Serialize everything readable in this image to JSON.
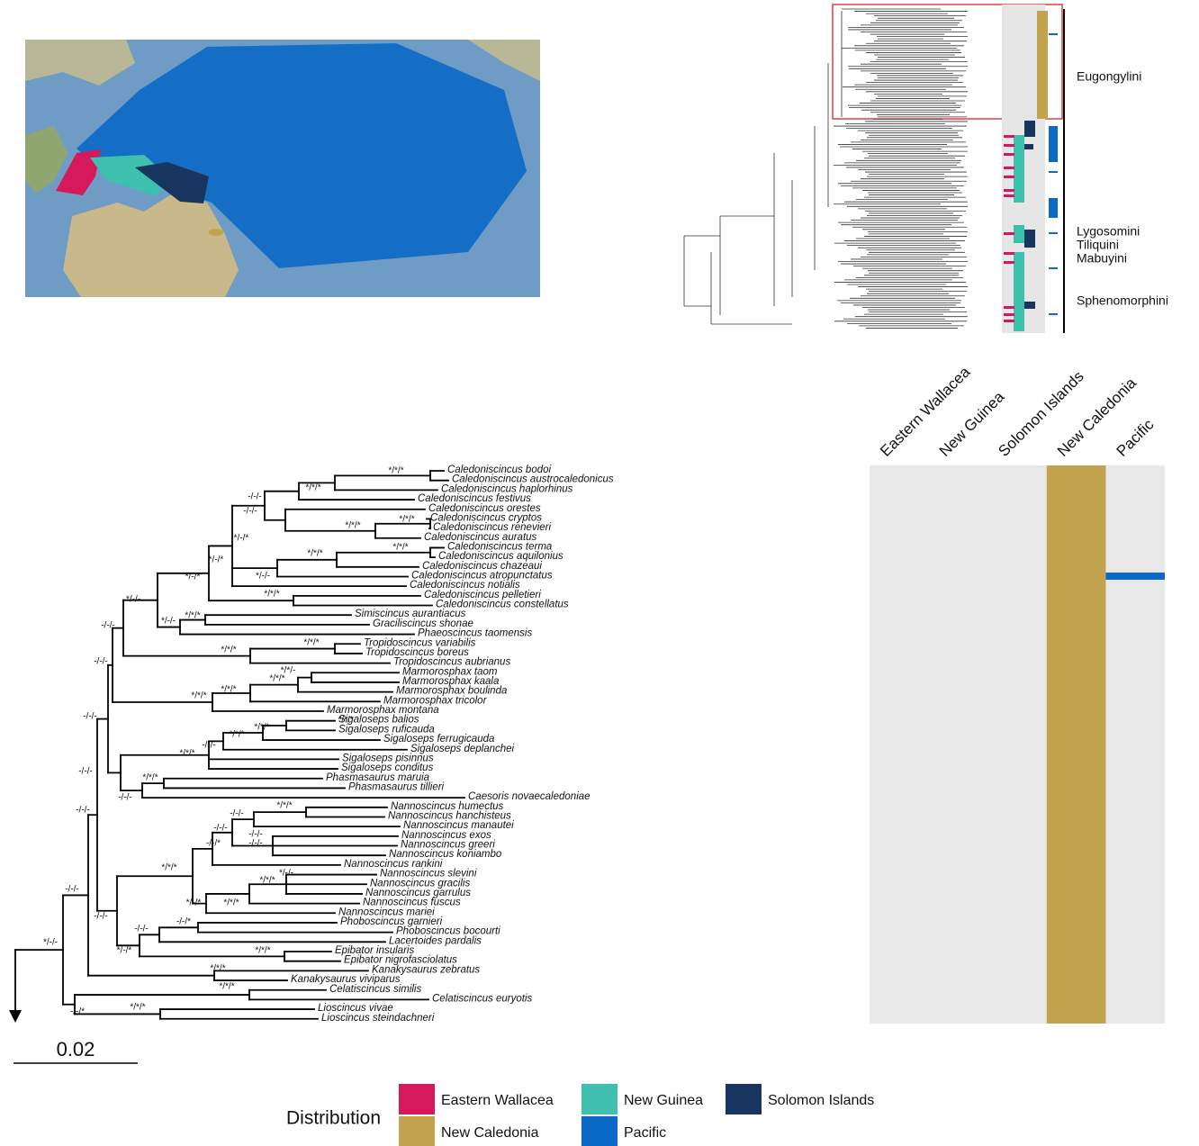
{
  "overview_tree": {
    "clades": [
      "Eugongylini",
      "Lygosomini",
      "Tiliquini",
      "Mabuyini",
      "Sphenomorphini"
    ]
  },
  "tree": {
    "tips": [
      "Caledoniscincus bodoi",
      "Caledoniscincus austrocaledonicus",
      "Caledoniscincus haplorhinus",
      "Caledoniscincus festivus",
      "Caledoniscincus orestes",
      "Caledoniscincus cryptos",
      "Caledoniscincus renevieri",
      "Caledoniscincus auratus",
      "Caledoniscincus terma",
      "Caledoniscincus aquilonius",
      "Caledoniscincus chazeaui",
      "Caledoniscincus atropunctatus",
      "Caledoniscincus notialis",
      "Caledoniscincus pelletieri",
      "Caledoniscincus constellatus",
      "Simiscincus aurantiacus",
      "Graciliscincus shonae",
      "Phaeoscincus taomensis",
      "Tropidoscincus variabilis",
      "Tropidoscincus boreus",
      "Tropidoscincus aubrianus",
      "Marmorosphax taom",
      "Marmorosphax kaala",
      "Marmorosphax boulinda",
      "Marmorosphax tricolor",
      "Marmorosphax montana",
      "Sigaloseps balios",
      "Sigaloseps ruficauda",
      "Sigaloseps ferrugicauda",
      "Sigaloseps deplanchei",
      "Sigaloseps pisinnus",
      "Sigaloseps conditus",
      "Phasmasaurus maruia",
      "Phasmasaurus tillieri",
      "Caesoris novaecaledoniae",
      "Nannoscincus humectus",
      "Nannoscincus hanchisteus",
      "Nannoscincus manautei",
      "Nannoscincus exos",
      "Nannoscincus greeri",
      "Nannoscincus koniambo",
      "Nannoscincus rankini",
      "Nannoscincus slevini",
      "Nannoscincus gracilis",
      "Nannoscincus garrulus",
      "Nannoscincus fuscus",
      "Nannoscincus mariei",
      "Phoboscincus garnieri",
      "Phoboscincus bocourti",
      "Lacertoides pardalis",
      "Epibator insularis",
      "Epibator nigrofasciolatus",
      "Kanakysaurus zebratus",
      "Kanakysaurus viviparus",
      "Celatiscincus similis",
      "Celatiscincus euryotis",
      "Lioscincus vivae",
      "Lioscincus steindachneri"
    ],
    "support": [
      "*/*/*",
      "*/*/*",
      "-/-/-",
      "-/-/-",
      "*/*/*",
      "*/*/*",
      "*/*/*",
      "*/-/*",
      "*/*/*",
      "*/-/*",
      "*/-/-",
      "*/-/*",
      "*/*/*",
      "*/-/-",
      "-/-/-",
      "*/-/-",
      "*/*/*",
      "*/*/*",
      "*/*/*",
      "-/-/-",
      "*/*/-",
      "*/*/*",
      "*/*/*",
      "*/*/*",
      "-/-/-",
      "*/*/*",
      "*/*/*",
      "*/*/*",
      "-/-/-",
      "*/*/*",
      "-/-/-",
      "*/*/*",
      "-/-/-",
      "-/-/-",
      "*/*/*",
      "-/-/-",
      "-/-/-",
      "-/-/-",
      "-/-/-",
      "-/-/*",
      "*/*/*",
      "*/-/-",
      "*/*/*",
      "*/-/*",
      "*/*/*",
      "-/-/-",
      "-/-/-",
      "-/-/-",
      "-/-/*",
      "*/-/*",
      "*/*/*",
      "*/-/-",
      "*/*/*",
      "*/*/*",
      "*/*/*",
      "-/-/*"
    ]
  },
  "scale_bar": "0.02",
  "columns": [
    "Eastern Wallacea",
    "New Guinea",
    "Solomon Islands",
    "New Caledonia",
    "Pacific"
  ],
  "legend": {
    "title": "Distribution",
    "items": [
      {
        "label": "Eastern Wallacea",
        "color": "#d6195a"
      },
      {
        "label": "New Guinea",
        "color": "#3fbfae"
      },
      {
        "label": "Solomon Islands",
        "color": "#17355f"
      },
      {
        "label": "New Caledonia",
        "color": "#c2a34e"
      },
      {
        "label": "Pacific",
        "color": "#0b69c7"
      }
    ]
  }
}
